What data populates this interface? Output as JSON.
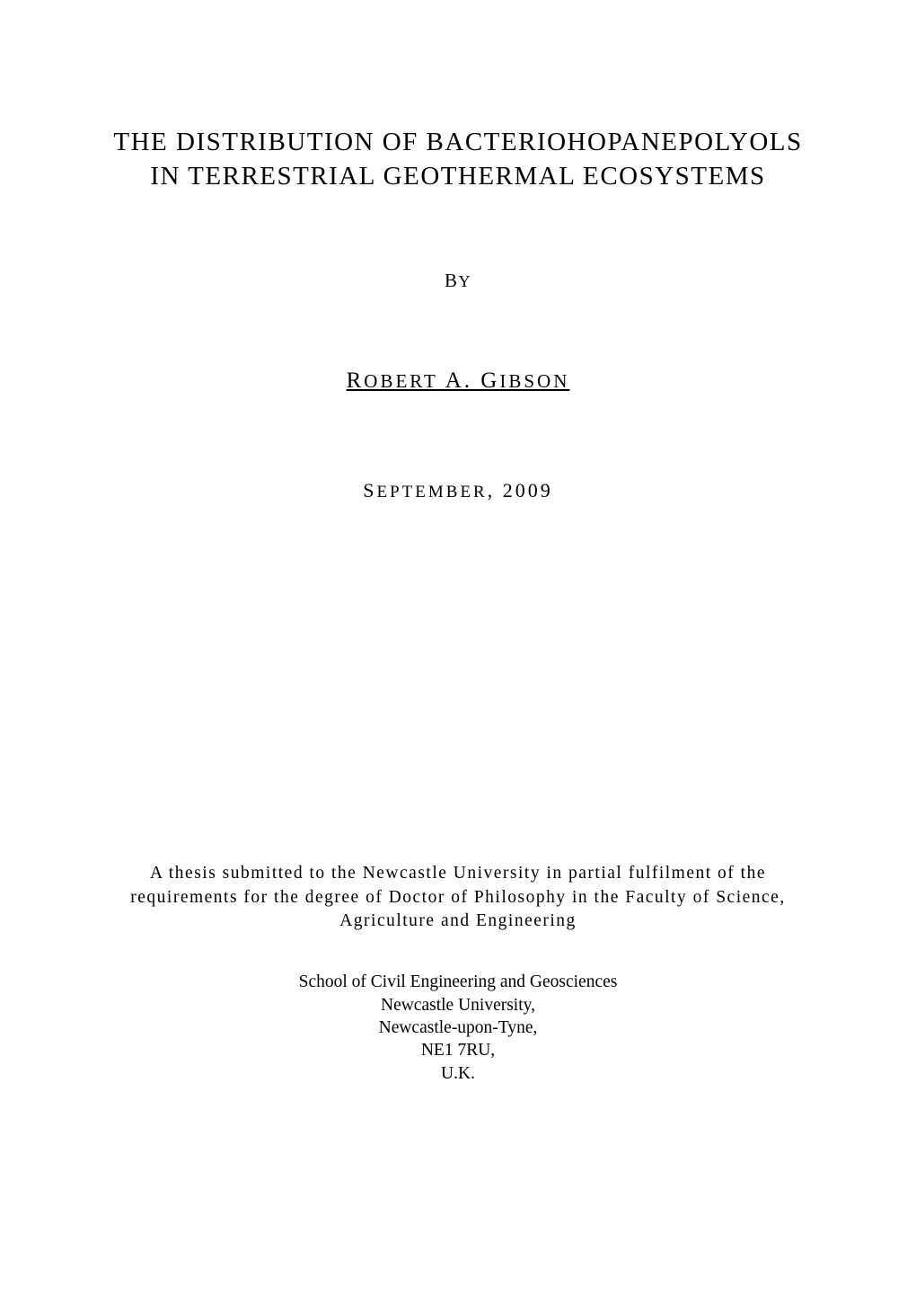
{
  "page": {
    "background_color": "#ffffff",
    "text_color": "#000000",
    "font_family": "Times New Roman"
  },
  "title": {
    "line1": "THE DISTRIBUTION OF BACTERIOHOPANEPOLYOLS",
    "line2": "IN TERRESTRIAL GEOTHERMAL ECOSYSTEMS",
    "fontsize": 29,
    "letter_spacing": 1.5
  },
  "by": {
    "first_letter": "B",
    "rest": "Y",
    "fontsize_large": 21,
    "fontsize_small": 18
  },
  "author": {
    "name_parts": [
      {
        "large": "R",
        "small": "OBERT"
      },
      {
        "large": " A. G",
        "small": "IBSON"
      }
    ],
    "fontsize_large": 25,
    "fontsize_small": 21,
    "underlined": true,
    "letter_spacing": 3
  },
  "date": {
    "parts": [
      {
        "large": "S",
        "small": "EPTEMBER"
      },
      {
        "large": ", 2009",
        "small": ""
      }
    ],
    "fontsize_large": 22,
    "fontsize_small": 19,
    "letter_spacing": 3
  },
  "submission": {
    "text": "A thesis submitted to the Newcastle University in partial fulfilment of the requirements for the degree of Doctor of Philosophy in the Faculty of Science, Agriculture and Engineering",
    "fontsize": 19.5,
    "letter_spacing": 1.5
  },
  "affiliation": {
    "lines": [
      "School of Civil Engineering and Geosciences",
      "Newcastle University,",
      "Newcastle-upon-Tyne,",
      "NE1 7RU,",
      "U.K."
    ],
    "fontsize": 19.5
  }
}
